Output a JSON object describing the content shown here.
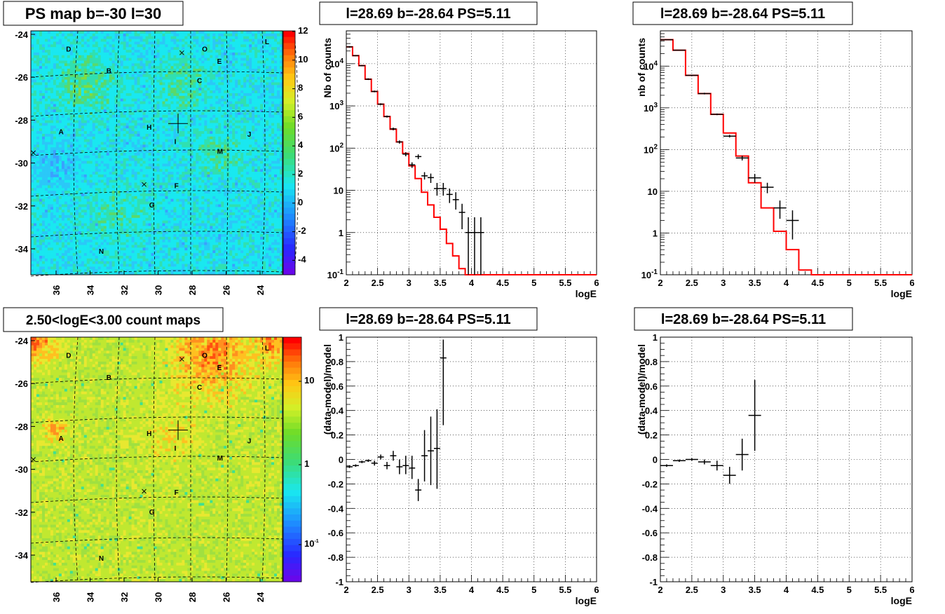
{
  "colors": {
    "model_line": "#ff0000",
    "data_marks": "#000000",
    "map_background_ps": "#19e8f0",
    "map_background_counts": "#b8e830",
    "title_box_border": "#000000"
  },
  "chart_data": [
    {
      "id": "ps_map",
      "type": "heatmap",
      "title": "PS map b=-30 l=30",
      "x_ticks": [
        "36",
        "34",
        "32",
        "30",
        "28",
        "26",
        "24"
      ],
      "y_ticks": [
        "-24",
        "-26",
        "-28",
        "-30",
        "-32",
        "-34"
      ],
      "colorbar": {
        "scale": "linear",
        "range": [
          -5,
          12
        ],
        "ticks": [
          "12",
          "10",
          "8",
          "6",
          "4",
          "2",
          "0",
          "-2",
          "-4"
        ]
      },
      "source_labels": [
        "D",
        "O",
        "L",
        "E",
        "B",
        "C",
        "H",
        "A",
        "I",
        "J",
        "M",
        "F",
        "G",
        "N"
      ]
    },
    {
      "id": "spectrum_1",
      "type": "line",
      "title": "l=28.69 b=-28.64 PS=5.11",
      "xlabel": "logE",
      "ylabel": "Nb of counts",
      "xlim": [
        2,
        6
      ],
      "ylim": [
        0.1,
        60000
      ],
      "y_log": true,
      "grid": true,
      "x_tick_labels": [
        "2",
        "2.5",
        "3",
        "3.5",
        "4",
        "4.5",
        "5",
        "5.5",
        "6"
      ],
      "y_tick_labels": [
        "10^-1",
        "1",
        "10",
        "10^2",
        "10^3",
        "10^4"
      ],
      "model_edges": [
        2.0,
        2.1,
        2.2,
        2.3,
        2.4,
        2.5,
        2.6,
        2.7,
        2.8,
        2.9,
        3.0,
        3.1,
        3.2,
        3.3,
        3.4,
        3.5,
        3.6,
        3.7,
        3.8,
        3.9,
        4.0,
        4.1,
        4.2,
        6.0
      ],
      "model_values": [
        25000,
        15500,
        9000,
        4300,
        2200,
        1100,
        560,
        280,
        140,
        75,
        38,
        19,
        9,
        4.5,
        2.3,
        1.2,
        0.55,
        0.28,
        0.14,
        0.1,
        0.1,
        0.1,
        0.1
      ],
      "data_points": [
        {
          "x": 2.05,
          "y": 25000,
          "lo": 24000,
          "hi": 26000,
          "dx": 0.05
        },
        {
          "x": 2.15,
          "y": 15500,
          "lo": 15000,
          "hi": 16000,
          "dx": 0.05
        },
        {
          "x": 2.25,
          "y": 9000,
          "lo": 8700,
          "hi": 9300,
          "dx": 0.05
        },
        {
          "x": 2.35,
          "y": 4300,
          "lo": 4100,
          "hi": 4500,
          "dx": 0.05
        },
        {
          "x": 2.45,
          "y": 2200,
          "lo": 2100,
          "hi": 2300,
          "dx": 0.05
        },
        {
          "x": 2.55,
          "y": 1100,
          "lo": 1050,
          "hi": 1150,
          "dx": 0.05
        },
        {
          "x": 2.65,
          "y": 560,
          "lo": 530,
          "hi": 590,
          "dx": 0.05
        },
        {
          "x": 2.75,
          "y": 285,
          "lo": 265,
          "hi": 305,
          "dx": 0.05
        },
        {
          "x": 2.85,
          "y": 140,
          "lo": 128,
          "hi": 152,
          "dx": 0.05
        },
        {
          "x": 2.95,
          "y": 72,
          "lo": 64,
          "hi": 80,
          "dx": 0.05
        },
        {
          "x": 3.05,
          "y": 40,
          "lo": 34,
          "hi": 46,
          "dx": 0.05
        },
        {
          "x": 3.15,
          "y": 63,
          "lo": 55,
          "hi": 71,
          "dx": 0.05
        },
        {
          "x": 3.25,
          "y": 22,
          "lo": 18,
          "hi": 27,
          "dx": 0.05
        },
        {
          "x": 3.35,
          "y": 20,
          "lo": 15,
          "hi": 25,
          "dx": 0.05
        },
        {
          "x": 3.45,
          "y": 11,
          "lo": 7.5,
          "hi": 15,
          "dx": 0.05
        },
        {
          "x": 3.55,
          "y": 11,
          "lo": 7.5,
          "hi": 15,
          "dx": 0.05
        },
        {
          "x": 3.65,
          "y": 8,
          "lo": 5,
          "hi": 11,
          "dx": 0.05
        },
        {
          "x": 3.75,
          "y": 6,
          "lo": 3.5,
          "hi": 9,
          "dx": 0.05
        },
        {
          "x": 3.85,
          "y": 3,
          "lo": 1.2,
          "hi": 4.8,
          "dx": 0.05
        },
        {
          "x": 3.95,
          "y": 1,
          "lo": 0.1,
          "hi": 2.3,
          "dx": 0.05
        },
        {
          "x": 4.05,
          "y": 1,
          "lo": 0.1,
          "hi": 2.3,
          "dx": 0.05
        },
        {
          "x": 4.15,
          "y": 1,
          "lo": 0.1,
          "hi": 2.3,
          "dx": 0.05
        }
      ]
    },
    {
      "id": "spectrum_2",
      "type": "line",
      "title": "l=28.69 b=-28.64 PS=5.11",
      "xlabel": "logE",
      "ylabel": "nb of counts",
      "xlim": [
        2,
        6
      ],
      "ylim": [
        0.1,
        70000
      ],
      "y_log": true,
      "grid": true,
      "x_tick_labels": [
        "2",
        "2.5",
        "3",
        "3.5",
        "4",
        "4.5",
        "5",
        "5.5",
        "6"
      ],
      "y_tick_labels": [
        "10^-1",
        "1",
        "10",
        "10^2",
        "10^3",
        "10^4"
      ],
      "model_edges": [
        2.0,
        2.2,
        2.4,
        2.6,
        2.8,
        3.0,
        3.2,
        3.4,
        3.6,
        3.8,
        4.0,
        4.2,
        4.4,
        6.0
      ],
      "model_values": [
        43000,
        24000,
        6000,
        2200,
        700,
        250,
        70,
        16,
        4,
        1.1,
        0.4,
        0.13,
        0.1
      ],
      "data_points": [
        {
          "x": 2.1,
          "y": 43000,
          "lo": 42000,
          "hi": 44000,
          "dx": 0.1
        },
        {
          "x": 2.3,
          "y": 24000,
          "lo": 23500,
          "hi": 24500,
          "dx": 0.1
        },
        {
          "x": 2.5,
          "y": 6000,
          "lo": 5800,
          "hi": 6200,
          "dx": 0.1
        },
        {
          "x": 2.7,
          "y": 2200,
          "lo": 2100,
          "hi": 2300,
          "dx": 0.1
        },
        {
          "x": 2.9,
          "y": 700,
          "lo": 670,
          "hi": 730,
          "dx": 0.1
        },
        {
          "x": 3.1,
          "y": 210,
          "lo": 195,
          "hi": 225,
          "dx": 0.1
        },
        {
          "x": 3.3,
          "y": 63,
          "lo": 55,
          "hi": 71,
          "dx": 0.1
        },
        {
          "x": 3.5,
          "y": 21,
          "lo": 16,
          "hi": 26,
          "dx": 0.1
        },
        {
          "x": 3.7,
          "y": 12.5,
          "lo": 9,
          "hi": 16,
          "dx": 0.1
        },
        {
          "x": 3.9,
          "y": 4,
          "lo": 2.2,
          "hi": 6,
          "dx": 0.1
        },
        {
          "x": 4.1,
          "y": 2,
          "lo": 0.7,
          "hi": 3.5,
          "dx": 0.1
        }
      ]
    },
    {
      "id": "count_map",
      "type": "heatmap",
      "title": "2.50<logE<3.00 count maps",
      "x_ticks": [
        "36",
        "34",
        "32",
        "30",
        "28",
        "26",
        "24"
      ],
      "y_ticks": [
        "-24",
        "-26",
        "-28",
        "-30",
        "-32",
        "-34"
      ],
      "colorbar": {
        "scale": "log",
        "range": [
          0.04,
          40
        ],
        "ticks": [
          "10",
          "1",
          "10^-1"
        ]
      },
      "source_labels": [
        "D",
        "O",
        "L",
        "E",
        "B",
        "C",
        "H",
        "A",
        "I",
        "J",
        "M",
        "F",
        "G",
        "N"
      ]
    },
    {
      "id": "residual_1",
      "type": "scatter",
      "title": "l=28.69 b=-28.64 PS=5.11",
      "xlabel": "logE",
      "ylabel": "(data-model)/model",
      "xlim": [
        2,
        6
      ],
      "ylim": [
        -1,
        1
      ],
      "grid": true,
      "x_tick_labels": [
        "2",
        "2.5",
        "3",
        "3.5",
        "4",
        "4.5",
        "5",
        "5.5",
        "6"
      ],
      "y_tick_labels": [
        "-1",
        "-0.8",
        "-0.6",
        "-0.4",
        "-0.2",
        "0",
        "0.2",
        "0.4",
        "0.6",
        "0.8",
        "1"
      ],
      "data_points": [
        {
          "x": 2.05,
          "y": -0.06,
          "lo": -0.07,
          "hi": -0.05,
          "dx": 0.05
        },
        {
          "x": 2.15,
          "y": -0.05,
          "lo": -0.06,
          "hi": -0.04,
          "dx": 0.05
        },
        {
          "x": 2.25,
          "y": -0.02,
          "lo": -0.03,
          "hi": -0.01,
          "dx": 0.05
        },
        {
          "x": 2.35,
          "y": -0.01,
          "lo": -0.02,
          "hi": 0.0,
          "dx": 0.05
        },
        {
          "x": 2.45,
          "y": -0.03,
          "lo": -0.05,
          "hi": -0.01,
          "dx": 0.05
        },
        {
          "x": 2.55,
          "y": 0.02,
          "lo": 0.0,
          "hi": 0.04,
          "dx": 0.05
        },
        {
          "x": 2.65,
          "y": -0.05,
          "lo": -0.08,
          "hi": -0.02,
          "dx": 0.05
        },
        {
          "x": 2.75,
          "y": 0.03,
          "lo": -0.01,
          "hi": 0.07,
          "dx": 0.05
        },
        {
          "x": 2.85,
          "y": -0.06,
          "lo": -0.12,
          "hi": 0.0,
          "dx": 0.05
        },
        {
          "x": 2.95,
          "y": -0.05,
          "lo": -0.12,
          "hi": 0.03,
          "dx": 0.05
        },
        {
          "x": 3.05,
          "y": -0.07,
          "lo": -0.16,
          "hi": 0.03,
          "dx": 0.05
        },
        {
          "x": 3.15,
          "y": -0.25,
          "lo": -0.34,
          "hi": -0.16,
          "dx": 0.05
        },
        {
          "x": 3.25,
          "y": 0.03,
          "lo": -0.18,
          "hi": 0.24,
          "dx": 0.05
        },
        {
          "x": 3.35,
          "y": 0.07,
          "lo": -0.21,
          "hi": 0.35,
          "dx": 0.05
        },
        {
          "x": 3.45,
          "y": 0.09,
          "lo": -0.24,
          "hi": 0.41,
          "dx": 0.05
        },
        {
          "x": 3.55,
          "y": 0.83,
          "lo": 0.28,
          "hi": 0.98,
          "dx": 0.05
        }
      ]
    },
    {
      "id": "residual_2",
      "type": "scatter",
      "title": "l=28.69 b=-28.64 PS=5.11",
      "xlabel": "logE",
      "ylabel": "(data-model)/model",
      "xlim": [
        2,
        6
      ],
      "ylim": [
        -1,
        1
      ],
      "grid": true,
      "x_tick_labels": [
        "2",
        "2.5",
        "3",
        "3.5",
        "4",
        "4.5",
        "5",
        "5.5",
        "6"
      ],
      "y_tick_labels": [
        "-1",
        "-0.8",
        "-0.6",
        "-0.4",
        "-0.2",
        "0",
        "0.2",
        "0.4",
        "0.6",
        "0.8",
        "1"
      ],
      "data_points": [
        {
          "x": 2.1,
          "y": -0.05,
          "lo": -0.06,
          "hi": -0.04,
          "dx": 0.1
        },
        {
          "x": 2.3,
          "y": -0.01,
          "lo": -0.02,
          "hi": 0.0,
          "dx": 0.1
        },
        {
          "x": 2.5,
          "y": 0.0,
          "lo": -0.01,
          "hi": 0.01,
          "dx": 0.1
        },
        {
          "x": 2.7,
          "y": -0.02,
          "lo": -0.04,
          "hi": 0.0,
          "dx": 0.1
        },
        {
          "x": 2.9,
          "y": -0.05,
          "lo": -0.09,
          "hi": -0.01,
          "dx": 0.1
        },
        {
          "x": 3.1,
          "y": -0.13,
          "lo": -0.2,
          "hi": -0.06,
          "dx": 0.1
        },
        {
          "x": 3.3,
          "y": 0.04,
          "lo": -0.09,
          "hi": 0.17,
          "dx": 0.1
        },
        {
          "x": 3.5,
          "y": 0.36,
          "lo": 0.07,
          "hi": 0.65,
          "dx": 0.1
        }
      ]
    }
  ]
}
